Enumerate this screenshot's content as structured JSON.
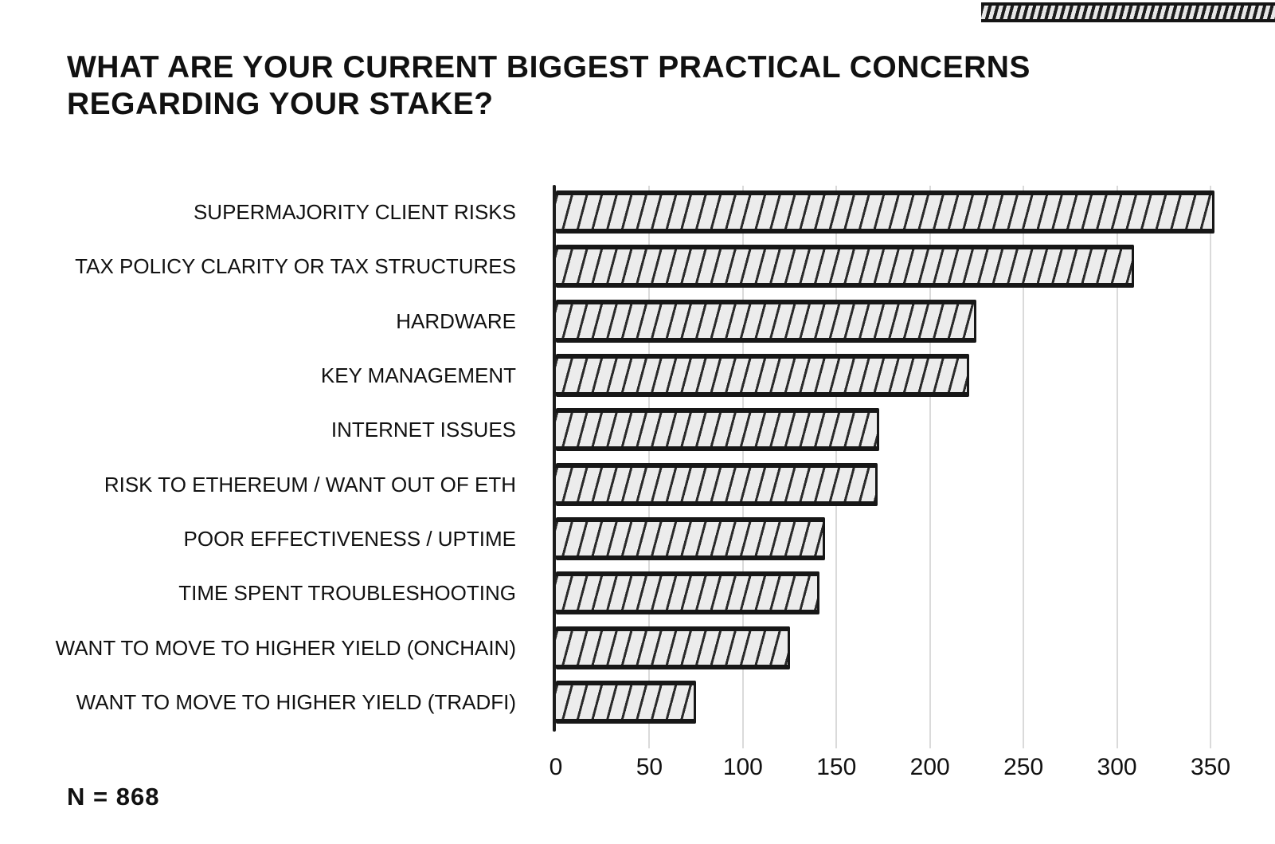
{
  "chart_data": {
    "type": "bar",
    "orientation": "horizontal",
    "title": "WHAT ARE YOUR CURRENT BIGGEST PRACTICAL CONCERNS REGARDING YOUR STAKE?",
    "categories": [
      "SUPERMAJORITY CLIENT RISKS",
      "TAX POLICY CLARITY OR TAX STRUCTURES",
      "HARDWARE",
      "KEY MANAGEMENT",
      "INTERNET ISSUES",
      "RISK TO ETHEREUM / WANT OUT OF ETH",
      "POOR EFFECTIVENESS / UPTIME",
      "TIME SPENT TROUBLESHOOTING",
      "WANT TO MOVE TO HIGHER YIELD (ONCHAIN)",
      "WANT TO MOVE TO HIGHER YIELD (TRADFI)"
    ],
    "values": [
      352,
      309,
      225,
      221,
      173,
      172,
      144,
      141,
      125,
      75
    ],
    "xlabel": "",
    "ylabel": "",
    "xlim": [
      0,
      350
    ],
    "xticks": [
      0,
      50,
      100,
      150,
      200,
      250,
      300,
      350
    ],
    "grid": true,
    "legend": false,
    "style": "hand-drawn, gray bars with diagonal hatching and thick black outlines",
    "sample_size_note": "N = 868"
  },
  "footer": {
    "n_label": "N = 868"
  },
  "colors": {
    "background": "#ffffff",
    "ink": "#111111",
    "bar_fill": "#ececec",
    "bar_outline": "#171717",
    "gridline": "#dadada"
  }
}
